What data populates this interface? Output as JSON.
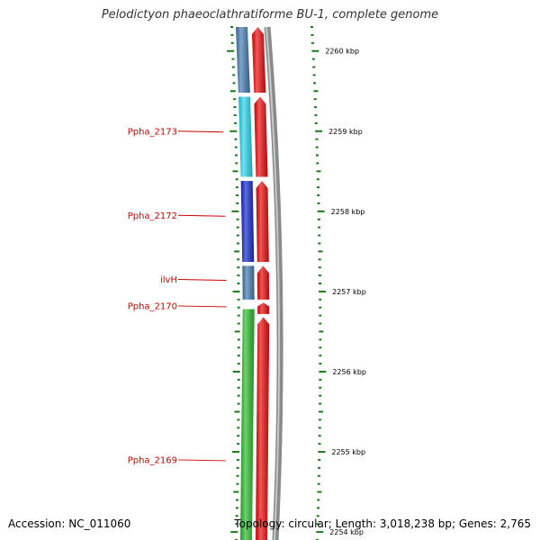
{
  "title": "Pelodictyon phaeoclathratiforme BU-1, complete genome",
  "accession": "Accession: NC_011060",
  "topology": "Topology: circular; Length: 3,018,238 bp; Genes: 2,765",
  "ticks": [
    {
      "label": "2260 kbp",
      "kbp": 2260
    },
    {
      "label": "2259 kbp",
      "kbp": 2259
    },
    {
      "label": "2258 kbp",
      "kbp": 2258
    },
    {
      "label": "2257 kbp",
      "kbp": 2257
    },
    {
      "label": "2256 kbp",
      "kbp": 2256
    },
    {
      "label": "2255 kbp",
      "kbp": 2255
    },
    {
      "label": "2254 kbp",
      "kbp": 2254
    }
  ],
  "view": {
    "start_kbp": 2253.9,
    "end_kbp": 2260.3
  },
  "gene_labels": [
    {
      "text": "Ppha_2173",
      "at_kbp": 2259.0
    },
    {
      "text": "Ppha_2172",
      "at_kbp": 2257.95
    },
    {
      "text": "ilvH",
      "at_kbp": 2257.15
    },
    {
      "text": "Ppha_2170",
      "at_kbp": 2256.82
    },
    {
      "text": "Ppha_2169",
      "at_kbp": 2254.9
    }
  ],
  "genes": [
    {
      "track": "cds",
      "start_kbp": 2259.48,
      "end_kbp": 2260.3,
      "color": "#4a7fb4"
    },
    {
      "track": "cds",
      "start_kbp": 2258.43,
      "end_kbp": 2259.43,
      "color": "#2fd8ee"
    },
    {
      "track": "cds",
      "start_kbp": 2257.37,
      "end_kbp": 2258.38,
      "color": "#1d2fd0"
    },
    {
      "track": "cds",
      "start_kbp": 2256.9,
      "end_kbp": 2257.32,
      "color": "#4a7fb4"
    },
    {
      "track": "cds",
      "start_kbp": 2253.9,
      "end_kbp": 2256.78,
      "color": "#32c032"
    },
    {
      "track": "orf",
      "start_kbp": 2259.48,
      "end_kbp": 2260.3,
      "color": "#ee1111"
    },
    {
      "track": "orf",
      "start_kbp": 2258.43,
      "end_kbp": 2259.43,
      "color": "#ee1111"
    },
    {
      "track": "orf",
      "start_kbp": 2257.37,
      "end_kbp": 2258.38,
      "color": "#ee1111"
    },
    {
      "track": "orf",
      "start_kbp": 2256.9,
      "end_kbp": 2257.32,
      "color": "#ee1111"
    },
    {
      "track": "orf",
      "start_kbp": 2256.72,
      "end_kbp": 2256.86,
      "color": "#ee1111"
    },
    {
      "track": "orf",
      "start_kbp": 2253.9,
      "end_kbp": 2256.68,
      "color": "#ee1111"
    }
  ],
  "colors": {
    "backbone": "#8a8a8a",
    "tick": "#1a7a1a",
    "label_line": "#cc0000"
  }
}
